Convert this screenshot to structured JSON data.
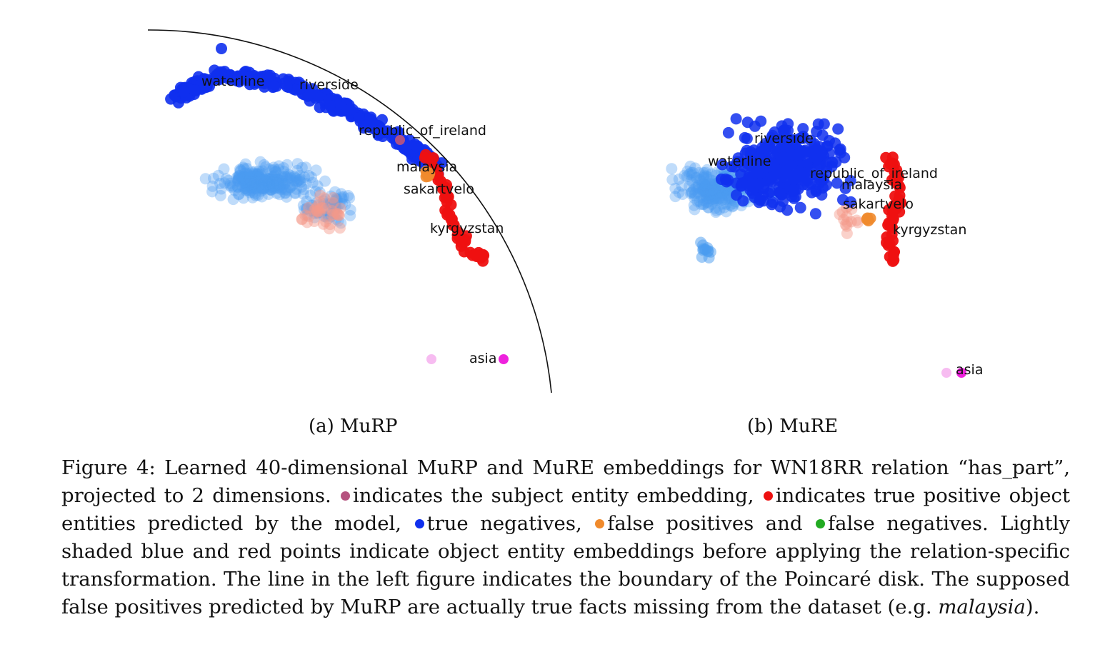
{
  "figure": {
    "panels": [
      {
        "id": "murp",
        "subcaption": "(a) MuRP",
        "labels": [
          "waterline",
          "riverside",
          "republic_of_ireland",
          "malaysia",
          "sakartvelo",
          "kyrgyzstan",
          "asia"
        ],
        "has_boundary": true
      },
      {
        "id": "mure",
        "subcaption": "(b) MuRE",
        "labels": [
          "riverside",
          "waterline",
          "republic_of_ireland",
          "malaysia",
          "sakartvelo",
          "kyrgyzstan",
          "asia"
        ],
        "has_boundary": false
      }
    ],
    "colors": {
      "subject": "#b5537f",
      "true_positive": "#ee1111",
      "true_negative": "#1030ee",
      "false_positive": "#f08a2c",
      "false_negative": "#22aa22",
      "shaded_blue": "#4a9bf0",
      "shaded_red": "#f59a8a",
      "asia_dot": "#ee22dd",
      "asia_shaded": "#f6b5f0"
    },
    "caption": {
      "line1": "Figure 4: Learned 40-dimensional MuRP and MuRE embeddings for WN18RR relation “has_part”,",
      "line2_a": "projected to 2 dimensions.",
      "line2_b": "indicates the subject entity embedding,",
      "line2_c": "indicates true positive object",
      "line3_a": "entities predicted by the model,",
      "line3_b": "true negatives,",
      "line3_c": "false positives and",
      "line3_d": "false negatives.  Lightly",
      "line4": "shaded blue and red points indicate object entity embeddings before applying the relation-specific",
      "line5": "transformation. The line in the left figure indicates the boundary of the Poincaré disk. The supposed",
      "line6_a": "false positives predicted by MuRP are actually true facts missing from the dataset (e.g.",
      "line6_b": "malaysia",
      "line6_c": ")."
    }
  }
}
